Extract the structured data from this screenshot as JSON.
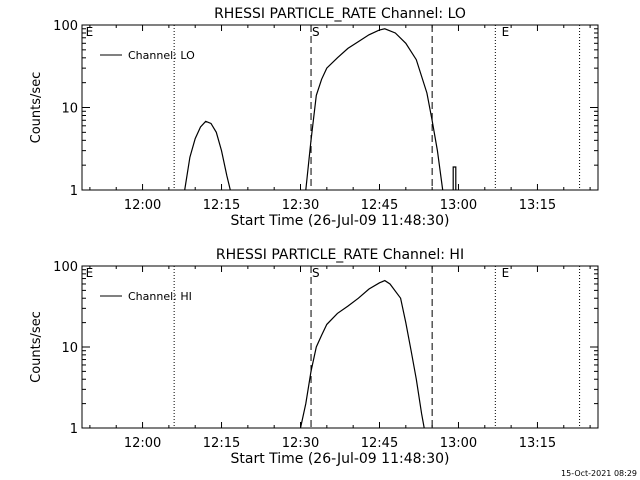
{
  "footer": {
    "timestamp": "15-Oct-2021 08:29"
  },
  "chart_data": [
    {
      "type": "line",
      "title": "RHESSI PARTICLE_RATE Channel: LO",
      "xlabel": "Start Time (26-Jul-09 11:48:30)",
      "ylabel": "Counts/sec",
      "yscale": "log",
      "ylim": [
        1,
        100
      ],
      "xlim": [
        "11:48:30",
        "13:26:30"
      ],
      "x_tick_labels": [
        "12:00",
        "12:15",
        "12:30",
        "12:45",
        "13:00",
        "13:15"
      ],
      "y_tick_labels": [
        "1",
        "10",
        "100"
      ],
      "legend": {
        "entries": [
          "Channel: LO"
        ],
        "position": "top-left"
      },
      "series": [
        {
          "name": "Channel: LO",
          "segments": [
            [
              [
                "12:08:00",
                1
              ],
              [
                "12:09:00",
                2.5
              ],
              [
                "12:10:00",
                4.2
              ],
              [
                "12:11:00",
                5.8
              ],
              [
                "12:12:00",
                6.8
              ],
              [
                "12:13:00",
                6.4
              ],
              [
                "12:14:00",
                5.0
              ],
              [
                "12:15:00",
                3.0
              ],
              [
                "12:16:00",
                1.5
              ],
              [
                "12:16:40",
                1
              ]
            ],
            [
              [
                "12:31:00",
                1
              ],
              [
                "12:32:00",
                4.0
              ],
              [
                "12:33:00",
                14
              ],
              [
                "12:34:00",
                22
              ],
              [
                "12:35:00",
                30
              ],
              [
                "12:37:00",
                40
              ],
              [
                "12:39:00",
                52
              ],
              [
                "12:41:00",
                63
              ],
              [
                "12:43:00",
                76
              ],
              [
                "12:45:00",
                87
              ],
              [
                "12:46:00",
                90
              ],
              [
                "12:48:00",
                80
              ],
              [
                "12:50:00",
                60
              ],
              [
                "12:52:00",
                38
              ],
              [
                "12:54:00",
                15
              ],
              [
                "12:55:00",
                7
              ],
              [
                "12:56:00",
                3
              ],
              [
                "12:57:00",
                1
              ]
            ],
            [
              [
                "12:59:00",
                1
              ],
              [
                "12:59:00",
                1.9
              ],
              [
                "12:59:30",
                1.9
              ],
              [
                "12:59:30",
                1
              ]
            ]
          ]
        }
      ],
      "annotations": [
        {
          "text": "E",
          "x": "11:49:00"
        },
        {
          "text": "S",
          "x": "12:32:00"
        },
        {
          "text": "E",
          "x": "13:08:00"
        }
      ],
      "vlines": [
        {
          "x": "12:06:00",
          "style": "dotted"
        },
        {
          "x": "12:32:00",
          "style": "dashed"
        },
        {
          "x": "12:55:00",
          "style": "dashed"
        },
        {
          "x": "13:07:00",
          "style": "dotted"
        },
        {
          "x": "13:23:00",
          "style": "dotted"
        }
      ]
    },
    {
      "type": "line",
      "title": "RHESSI PARTICLE_RATE Channel: HI",
      "xlabel": "Start Time (26-Jul-09 11:48:30)",
      "ylabel": "Counts/sec",
      "yscale": "log",
      "ylim": [
        1,
        100
      ],
      "xlim": [
        "11:48:30",
        "13:26:30"
      ],
      "x_tick_labels": [
        "12:00",
        "12:15",
        "12:30",
        "12:45",
        "13:00",
        "13:15"
      ],
      "y_tick_labels": [
        "1",
        "10",
        "100"
      ],
      "legend": {
        "entries": [
          "Channel: HI"
        ],
        "position": "top-left"
      },
      "series": [
        {
          "name": "Channel: HI",
          "segments": [
            [
              [
                "12:30:00",
                1
              ],
              [
                "12:31:00",
                2.0
              ],
              [
                "12:32:00",
                5
              ],
              [
                "12:33:00",
                10
              ],
              [
                "12:34:00",
                14
              ],
              [
                "12:35:00",
                19
              ],
              [
                "12:37:00",
                26
              ],
              [
                "12:39:00",
                32
              ],
              [
                "12:41:00",
                40
              ],
              [
                "12:43:00",
                52
              ],
              [
                "12:45:00",
                62
              ],
              [
                "12:46:00",
                66
              ],
              [
                "12:47:00",
                60
              ],
              [
                "12:49:00",
                40
              ],
              [
                "12:50:00",
                20
              ],
              [
                "12:51:00",
                9
              ],
              [
                "12:52:00",
                4
              ],
              [
                "12:53:00",
                1.5
              ],
              [
                "12:53:30",
                1
              ]
            ]
          ]
        }
      ],
      "annotations": [
        {
          "text": "E",
          "x": "11:49:00"
        },
        {
          "text": "S",
          "x": "12:32:00"
        },
        {
          "text": "E",
          "x": "13:08:00"
        }
      ],
      "vlines": [
        {
          "x": "12:06:00",
          "style": "dotted"
        },
        {
          "x": "12:32:00",
          "style": "dashed"
        },
        {
          "x": "12:55:00",
          "style": "dashed"
        },
        {
          "x": "13:07:00",
          "style": "dotted"
        },
        {
          "x": "13:23:00",
          "style": "dotted"
        }
      ]
    }
  ]
}
